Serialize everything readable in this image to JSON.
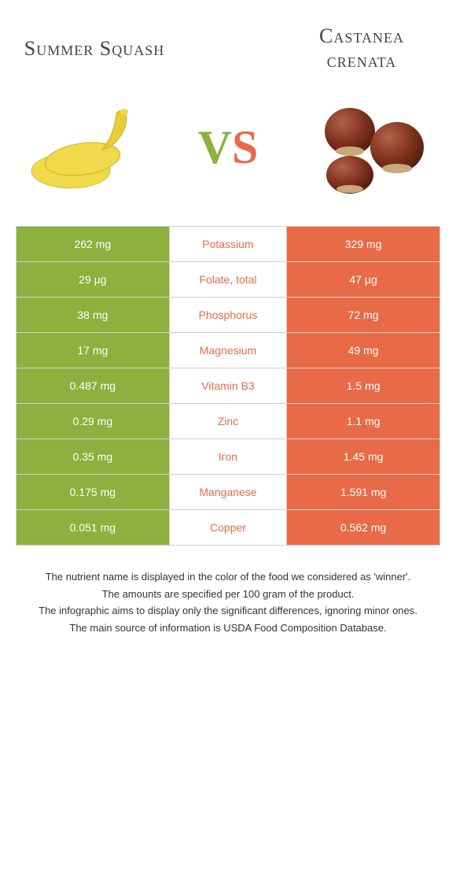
{
  "header": {
    "left_title": "Summer Squash",
    "right_title": "Castanea crenata"
  },
  "vs": {
    "v": "V",
    "s": "S"
  },
  "colors": {
    "left": "#8cb13e",
    "right": "#e86a47",
    "row_border": "#d0d0d0",
    "text_gray": "#444444"
  },
  "nutrients": [
    {
      "left": "262 mg",
      "name": "Potassium",
      "right": "329 mg",
      "winner": "right"
    },
    {
      "left": "29 µg",
      "name": "Folate, total",
      "right": "47 µg",
      "winner": "right"
    },
    {
      "left": "38 mg",
      "name": "Phosphorus",
      "right": "72 mg",
      "winner": "right"
    },
    {
      "left": "17 mg",
      "name": "Magnesium",
      "right": "49 mg",
      "winner": "right"
    },
    {
      "left": "0.487 mg",
      "name": "Vitamin B3",
      "right": "1.5 mg",
      "winner": "right"
    },
    {
      "left": "0.29 mg",
      "name": "Zinc",
      "right": "1.1 mg",
      "winner": "right"
    },
    {
      "left": "0.35 mg",
      "name": "Iron",
      "right": "1.45 mg",
      "winner": "right"
    },
    {
      "left": "0.175 mg",
      "name": "Manganese",
      "right": "1.591 mg",
      "winner": "right"
    },
    {
      "left": "0.051 mg",
      "name": "Copper",
      "right": "0.562 mg",
      "winner": "right"
    }
  ],
  "footnotes": [
    "The nutrient name is displayed in the color of the food we considered as 'winner'.",
    "The amounts are specified per 100 gram of the product.",
    "The infographic aims to display only the significant differences, ignoring minor ones.",
    "The main source of information is USDA Food Composition Database."
  ]
}
